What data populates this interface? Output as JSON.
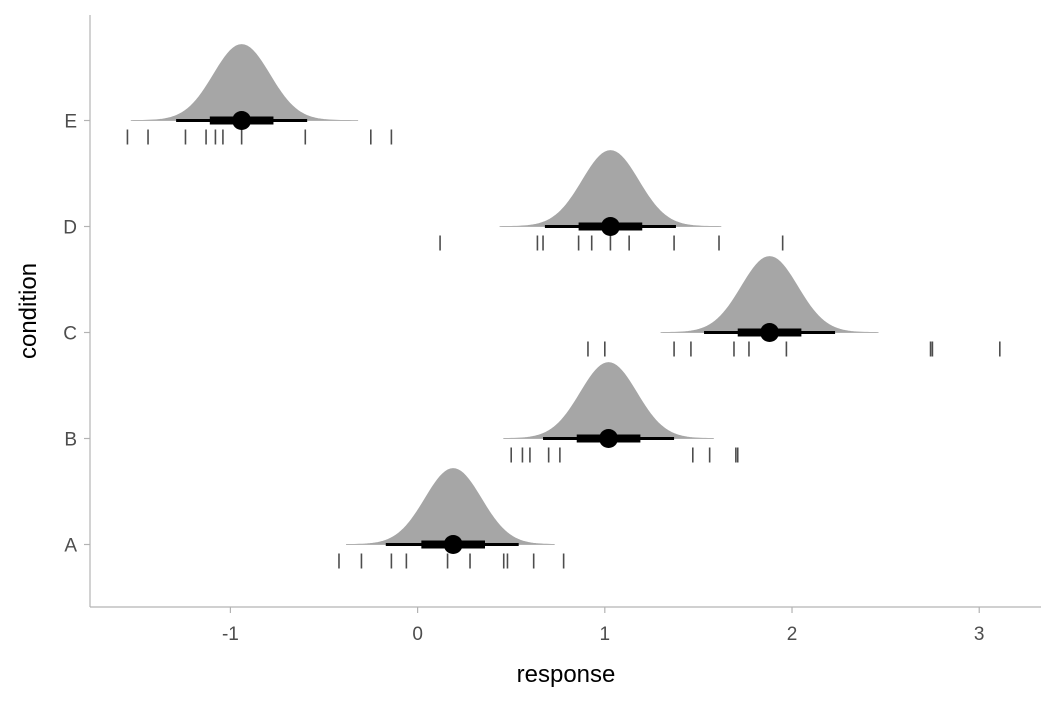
{
  "chart_data": {
    "type": "halfeye",
    "xlabel": "response",
    "ylabel": "condition",
    "xlim": [
      -1.75,
      3.33
    ],
    "x_ticks": [
      -1,
      0,
      1,
      2,
      3
    ],
    "categories": [
      "A",
      "B",
      "C",
      "D",
      "E"
    ],
    "grid": false,
    "colors": {
      "density_fill": "#a6a6a6",
      "interval": "#000000",
      "rug": "#4d4d4d",
      "axis": "#b3b3b3"
    },
    "series": [
      {
        "condition": "A",
        "density": {
          "mean": 0.19,
          "sd": 0.15,
          "from": -0.38,
          "to": 0.73
        },
        "point": 0.19,
        "interval_66": [
          0.02,
          0.36
        ],
        "interval_95": [
          -0.17,
          0.54
        ],
        "observations": [
          -0.42,
          -0.3,
          -0.14,
          -0.06,
          0.16,
          0.28,
          0.46,
          0.48,
          0.62,
          0.78
        ]
      },
      {
        "condition": "B",
        "density": {
          "mean": 1.02,
          "sd": 0.15,
          "from": 0.46,
          "to": 1.58
        },
        "point": 1.02,
        "interval_66": [
          0.85,
          1.19
        ],
        "interval_95": [
          0.67,
          1.37
        ],
        "observations": [
          0.5,
          0.56,
          0.6,
          0.7,
          0.76,
          1.47,
          1.56,
          1.7,
          1.71
        ]
      },
      {
        "condition": "C",
        "density": {
          "mean": 1.88,
          "sd": 0.15,
          "from": 1.3,
          "to": 2.46
        },
        "point": 1.88,
        "interval_66": [
          1.71,
          2.05
        ],
        "interval_95": [
          1.53,
          2.23
        ],
        "observations": [
          0.91,
          1.0,
          1.37,
          1.46,
          1.69,
          1.77,
          1.97,
          2.74,
          2.75,
          3.11
        ]
      },
      {
        "condition": "D",
        "density": {
          "mean": 1.03,
          "sd": 0.15,
          "from": 0.44,
          "to": 1.62
        },
        "point": 1.03,
        "interval_66": [
          0.86,
          1.2
        ],
        "interval_95": [
          0.68,
          1.38
        ],
        "observations": [
          0.12,
          0.64,
          0.67,
          0.86,
          0.93,
          1.03,
          1.13,
          1.37,
          1.61,
          1.95
        ]
      },
      {
        "condition": "E",
        "density": {
          "mean": -0.94,
          "sd": 0.15,
          "from": -1.53,
          "to": -0.32
        },
        "point": -0.94,
        "interval_66": [
          -1.11,
          -0.77
        ],
        "interval_95": [
          -1.29,
          -0.59
        ],
        "observations": [
          -1.55,
          -1.44,
          -1.24,
          -1.13,
          -1.08,
          -1.04,
          -0.94,
          -0.6,
          -0.25,
          -0.14
        ]
      }
    ]
  }
}
